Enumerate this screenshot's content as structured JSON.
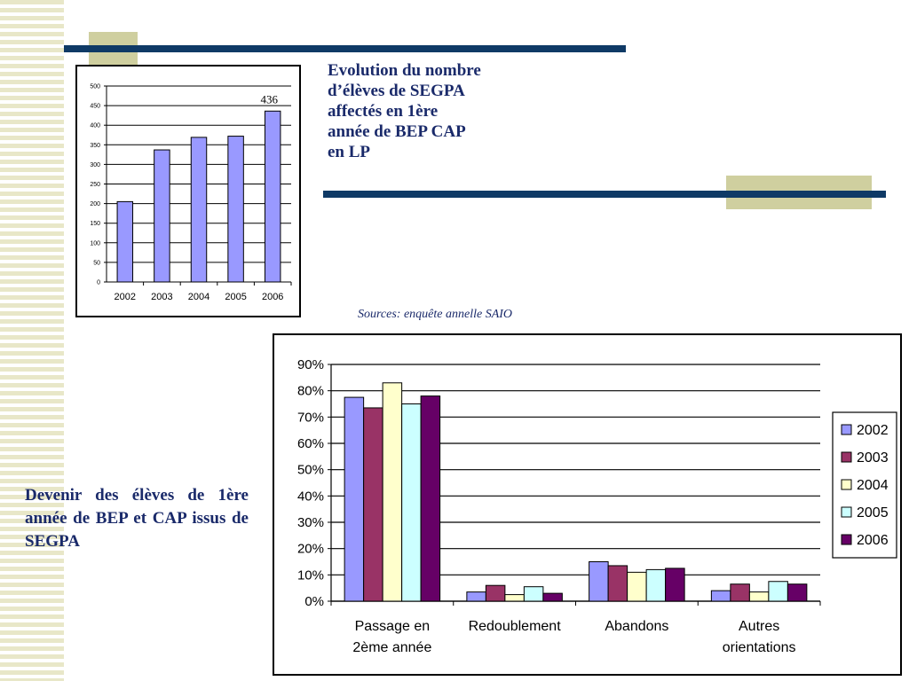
{
  "colors": {
    "stripe": "#e8e7c8",
    "deco_square": "#cfcf9f",
    "deco_bar": "#0f3a66",
    "title_text": "#1a2a6a",
    "bar1": "#9999ff"
  },
  "header": {
    "title_lines": [
      "Evolution du nombre",
      "d’élèves de SEGPA",
      "affectés en 1ère",
      "année de BEP CAP",
      "en LP"
    ]
  },
  "sources": "Sources: enquête annelle SAIO",
  "section2": {
    "title": "Devenir des élèves de 1ère année de BEP et CAP issus de SEGPA"
  },
  "chart_data": [
    {
      "type": "bar",
      "title": "",
      "categories": [
        "2002",
        "2003",
        "2004",
        "2005",
        "2006"
      ],
      "values": [
        205,
        337,
        369,
        372,
        436
      ],
      "ylim": [
        0,
        500
      ],
      "yticks": [
        "0",
        "50",
        "100",
        "150",
        "200",
        "250",
        "300",
        "350",
        "400",
        "450",
        "500"
      ],
      "annotations": [
        {
          "category": "2006",
          "text": "436"
        }
      ],
      "grid": true,
      "legend": "none"
    },
    {
      "type": "bar",
      "title": "",
      "categories": [
        [
          "Passage en",
          "2ème année"
        ],
        [
          "Redoublement"
        ],
        [
          "Abandons"
        ],
        [
          "Autres",
          "orientations"
        ]
      ],
      "series": [
        {
          "name": "2002",
          "color": "#9999ff",
          "values": [
            77.5,
            3.5,
            15,
            4
          ]
        },
        {
          "name": "2003",
          "color": "#993366",
          "values": [
            73.5,
            6,
            13.5,
            6.5
          ]
        },
        {
          "name": "2004",
          "color": "#ffffcc",
          "values": [
            83,
            2.5,
            11,
            3.5
          ]
        },
        {
          "name": "2005",
          "color": "#ccffff",
          "values": [
            75,
            5.5,
            12,
            7.5
          ]
        },
        {
          "name": "2006",
          "color": "#660066",
          "values": [
            78,
            3,
            12.5,
            6.5
          ]
        }
      ],
      "ylim": [
        0,
        90
      ],
      "yticks": [
        "0%",
        "10%",
        "20%",
        "30%",
        "40%",
        "50%",
        "60%",
        "70%",
        "80%",
        "90%"
      ],
      "grid": true,
      "legend": "right"
    }
  ]
}
